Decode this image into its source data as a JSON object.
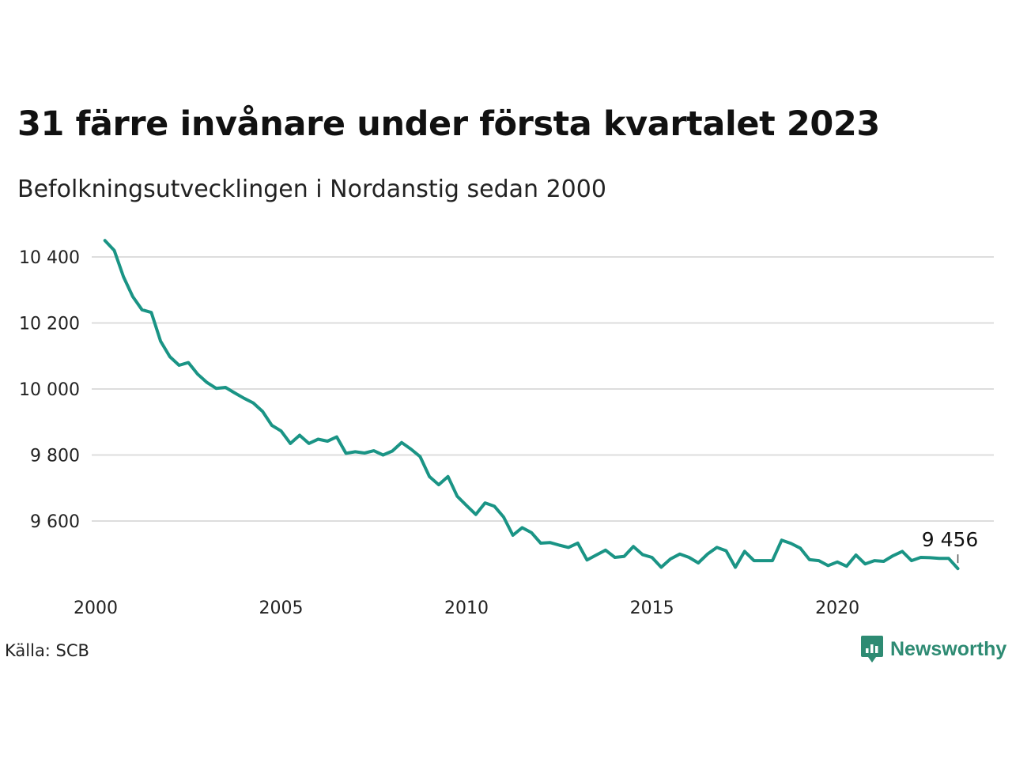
{
  "title": "31 färre invånare under första kvartalet 2023",
  "subtitle": "Befolkningsutvecklingen i Nordanstig sedan 2000",
  "source": "Källa: SCB",
  "brand": "Newsworthy",
  "colors": {
    "line": "#1a9485",
    "grid": "#dddddd",
    "brand": "#2e8b73"
  },
  "chart_data": {
    "type": "line",
    "x_start": 2000.25,
    "x_step": 0.25,
    "values": [
      10450,
      10420,
      10340,
      10280,
      10240,
      10232,
      10145,
      10098,
      10072,
      10080,
      10045,
      10020,
      10002,
      10005,
      9988,
      9972,
      9958,
      9932,
      9890,
      9873,
      9835,
      9860,
      9835,
      9848,
      9842,
      9855,
      9805,
      9810,
      9806,
      9813,
      9800,
      9812,
      9838,
      9818,
      9795,
      9735,
      9710,
      9735,
      9675,
      9647,
      9620,
      9655,
      9645,
      9612,
      9557,
      9580,
      9565,
      9533,
      9535,
      9527,
      9520,
      9533,
      9482,
      9497,
      9512,
      9490,
      9493,
      9523,
      9498,
      9490,
      9460,
      9485,
      9500,
      9490,
      9473,
      9500,
      9520,
      9510,
      9460,
      9508,
      9480,
      9480,
      9480,
      9542,
      9532,
      9518,
      9483,
      9480,
      9465,
      9476,
      9463,
      9497,
      9470,
      9480,
      9478,
      9495,
      9508,
      9480,
      9490,
      9489,
      9487,
      9487,
      9456
    ],
    "xlim": [
      2000,
      2023.75
    ],
    "ylim": [
      9430,
      10460
    ],
    "xticks": [
      2000,
      2005,
      2010,
      2015,
      2020
    ],
    "yticks": [
      9600,
      9800,
      10000,
      10200,
      10400
    ],
    "ytick_labels": [
      "9 600",
      "9 800",
      "10 000",
      "10 200",
      "10 400"
    ],
    "annotation": {
      "text": "9 456",
      "x": 2023.25,
      "y": 9456
    },
    "grid": true,
    "legend": "none"
  }
}
